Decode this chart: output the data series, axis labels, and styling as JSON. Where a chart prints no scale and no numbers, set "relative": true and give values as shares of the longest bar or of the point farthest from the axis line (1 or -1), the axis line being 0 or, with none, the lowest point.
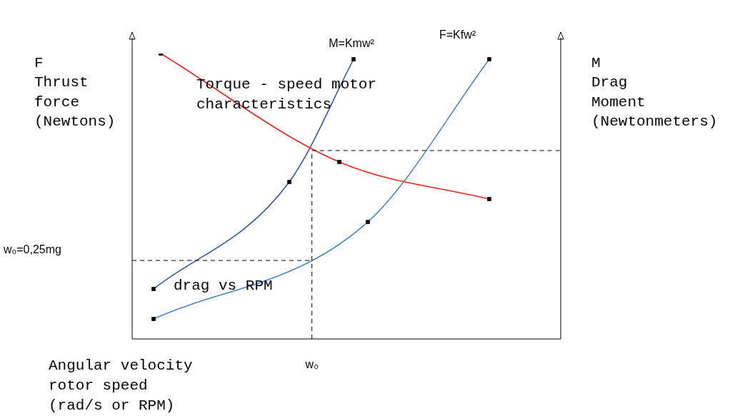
{
  "chart_data": {
    "type": "line",
    "relative": true,
    "marker": "square",
    "xlabel": "Angular velocity\nrotor speed\n(rad/s or RPM)",
    "ylabel": "F\nThrust\nforce\n(Newtons)",
    "y2label": "M\nDrag\nMoment\n(Newtonmeters)",
    "categories": [
      null,
      null,
      null,
      null,
      null,
      null,
      null,
      null,
      null,
      null,
      null,
      null,
      null,
      null,
      null,
      null,
      null,
      null,
      null,
      null,
      null,
      null,
      null,
      null,
      null,
      null,
      null,
      null,
      null,
      null,
      null,
      null,
      null,
      null,
      null,
      null,
      null,
      null,
      null,
      null,
      null,
      null,
      null,
      null,
      null,
      null,
      null,
      null,
      null,
      null,
      null,
      null,
      null,
      null,
      null,
      null,
      null,
      null,
      null,
      null,
      null
    ],
    "series": [
      {
        "name": "Torque - speed motor\ncharacteristics",
        "color": "#ee2222",
        "values": [
          null,
          null,
          null,
          null,
          1.0,
          null,
          null,
          null,
          null,
          null,
          null,
          null,
          null,
          null,
          null,
          null,
          null,
          null,
          null,
          null,
          null,
          null,
          null,
          null,
          null,
          null,
          null,
          null,
          null,
          0.62,
          null,
          null,
          null,
          null,
          null,
          null,
          null,
          null,
          null,
          null,
          null,
          null,
          null,
          null,
          null,
          null,
          null,
          null,
          null,
          null,
          0.49,
          null,
          null,
          null,
          null,
          null,
          null,
          null,
          null,
          null,
          null
        ]
      },
      {
        "name": "M=Kmw²",
        "color": "#3355aa",
        "values": [
          null,
          null,
          null,
          0.175,
          null,
          null,
          null,
          null,
          null,
          null,
          null,
          null,
          null,
          null,
          null,
          null,
          null,
          null,
          null,
          null,
          null,
          null,
          0.55,
          null,
          null,
          null,
          null,
          null,
          null,
          null,
          null,
          0.98,
          null,
          null,
          null,
          null,
          null,
          null,
          null,
          null,
          null,
          null,
          null,
          null,
          null,
          null,
          null,
          null,
          null,
          null,
          null,
          null,
          null,
          null,
          null,
          null,
          null,
          null,
          null,
          null,
          null
        ]
      },
      {
        "name": "F=Kfw²",
        "color": "#4a86c8",
        "values": [
          null,
          null,
          null,
          0.07,
          null,
          null,
          null,
          null,
          null,
          null,
          null,
          null,
          null,
          null,
          null,
          null,
          null,
          null,
          null,
          null,
          null,
          null,
          null,
          null,
          null,
          null,
          null,
          null,
          null,
          null,
          null,
          null,
          null,
          0.41,
          null,
          null,
          null,
          null,
          null,
          null,
          null,
          null,
          null,
          null,
          null,
          null,
          null,
          null,
          null,
          null,
          0.98,
          null,
          null,
          null,
          null,
          null,
          null,
          null,
          null,
          null,
          null
        ]
      }
    ],
    "ref_lines": [
      {
        "axis": "y",
        "value": 0.275,
        "line_style": "dashed"
      },
      {
        "axis": "y",
        "value": 0.66,
        "line_style": "dashed"
      }
    ],
    "annotations": [
      "drag vs RPM",
      "w₀=0,25mg",
      "w₀"
    ]
  }
}
